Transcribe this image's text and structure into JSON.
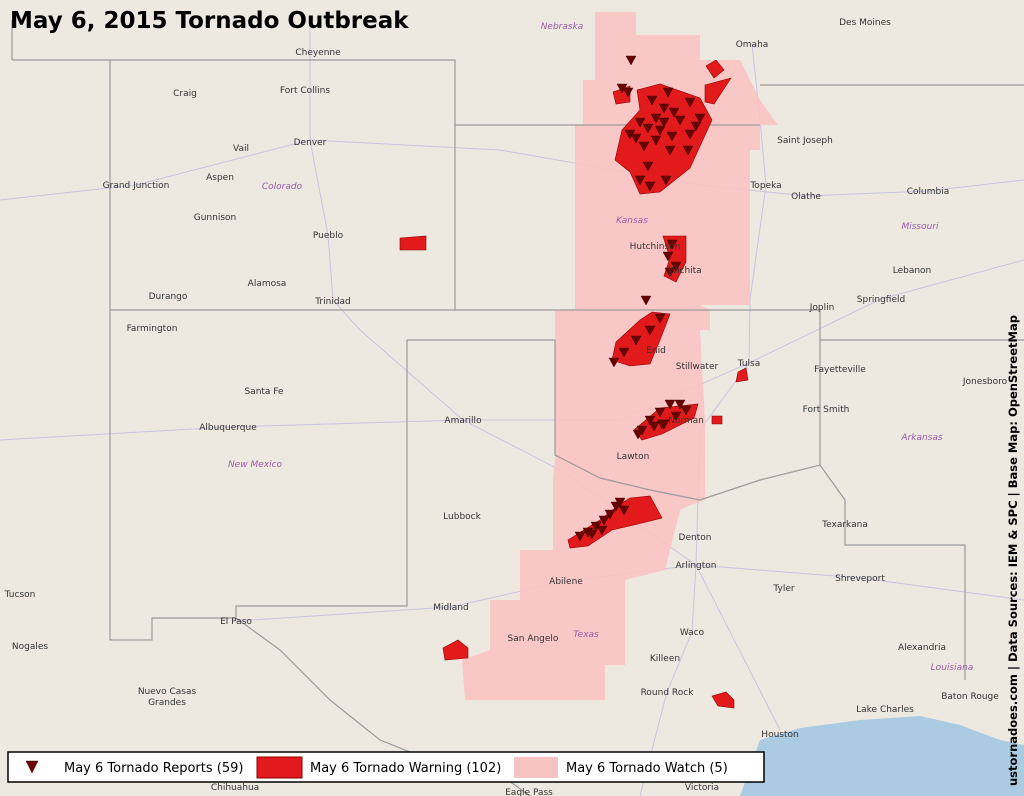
{
  "map": {
    "title": "May 6, 2015 Tornado Outbreak",
    "places": [
      "Cheyenne",
      "Craig",
      "Fort Collins",
      "Denver",
      "Vail",
      "Grand Junction",
      "Aspen",
      "Gunnison",
      "Pueblo",
      "Durango",
      "Alamosa",
      "Trinidad",
      "Farmington",
      "Santa Fe",
      "Albuquerque",
      "Amarillo",
      "Lubbock",
      "Midland",
      "El Paso",
      "Tucson",
      "Nogales",
      "Nuevo Casas",
      "Grandes",
      "Omaha",
      "Des Moines",
      "Saint Joseph",
      "Topeka",
      "Olathe",
      "Columbia",
      "Hutchinson",
      "Wichita",
      "Lebanon",
      "Springfield",
      "Joplin",
      "Enid",
      "Stillwater",
      "Tulsa",
      "Fayetteville",
      "Fort Smith",
      "Norman",
      "Lawton",
      "Texarkana",
      "Denton",
      "Arlington",
      "Tyler",
      "Shreveport",
      "Abilene",
      "San Angelo",
      "Waco",
      "Alexandria",
      "Killeen",
      "Round Rock",
      "Baton Rouge",
      "Lake Charles",
      "Houston",
      "Victoria",
      "Eagle Pass",
      "Chihuahua",
      "Jonesboro"
    ],
    "regions": [
      "Nebraska",
      "Colorado",
      "Kansas",
      "Missouri",
      "New Mexico",
      "Arkansas",
      "Texas",
      "Louisiana"
    ]
  },
  "legend": [
    "May 6 Tornado Reports (59)",
    "May 6 Tornado Warning (102)",
    "May 6 Tornado Watch (5)"
  ],
  "credit": "ustornadoes.com | Data Sources: IEM & SPC | Base Map: OpenStreetMap"
}
